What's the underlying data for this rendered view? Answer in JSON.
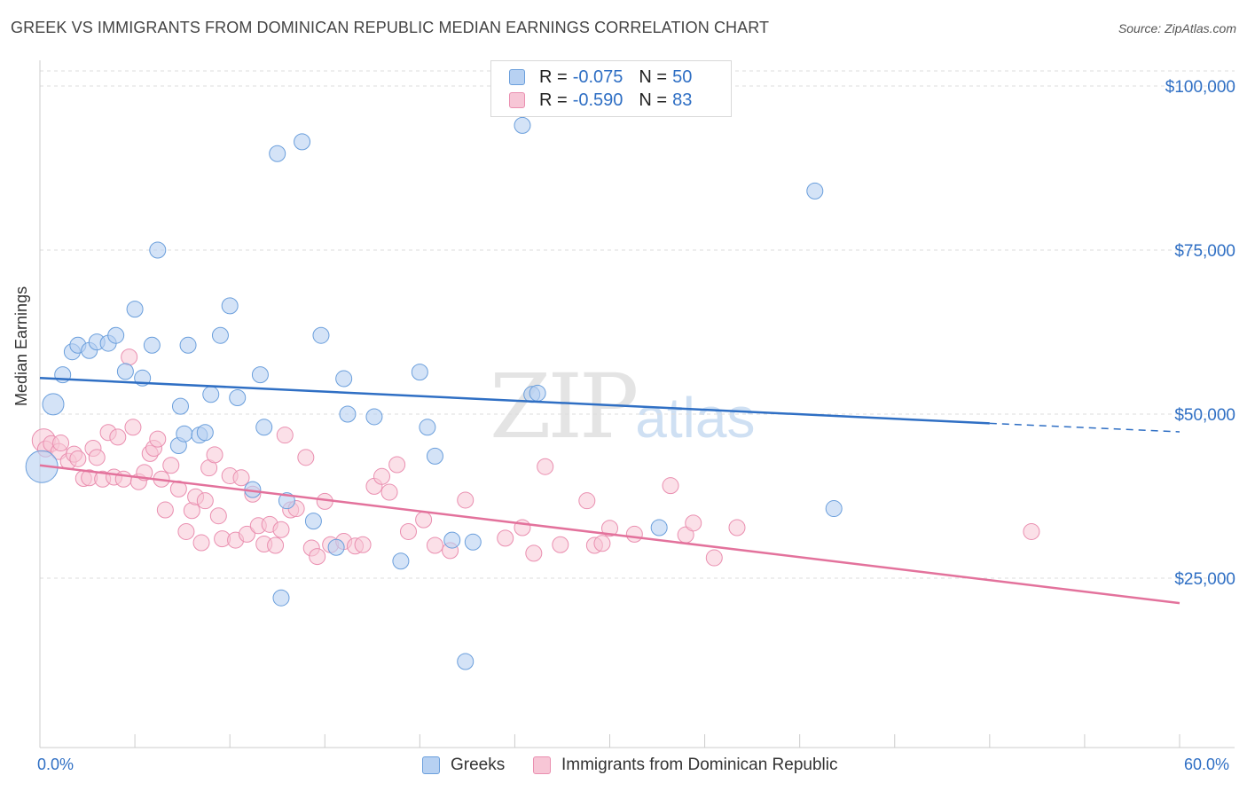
{
  "title": "GREEK VS IMMIGRANTS FROM DOMINICAN REPUBLIC MEDIAN EARNINGS CORRELATION CHART",
  "source": "Source: ZipAtlas.com",
  "watermark": {
    "zip": "ZIP",
    "atlas": "atlas"
  },
  "legend": {
    "rows": [
      {
        "r_label": "R =",
        "r_value": "-0.075",
        "n_label": "N =",
        "n_value": "50"
      },
      {
        "r_label": "R =",
        "r_value": "-0.590",
        "n_label": "N =",
        "n_value": "83"
      }
    ]
  },
  "bottom_legend": [
    "Greeks",
    "Immigrants from Dominican Republic"
  ],
  "colors": {
    "greeks_fill": "#b7d1f2",
    "greeks_stroke": "#6b9fdc",
    "greeks_line": "#2f6fc4",
    "dom_fill": "#f7c6d6",
    "dom_stroke": "#ea8fb0",
    "dom_line": "#e3729c",
    "grid": "#dddddd",
    "axis_text": "#2f6fc4"
  },
  "chart_data": {
    "type": "scatter",
    "title": "GREEK VS IMMIGRANTS FROM DOMINICAN REPUBLIC MEDIAN EARNINGS CORRELATION CHART",
    "xlabel": "",
    "ylabel": "Median Earnings",
    "xlim": [
      0,
      60
    ],
    "ylim": [
      0,
      105000
    ],
    "x_tick_labels": [
      "0.0%",
      "60.0%"
    ],
    "y_ticks": [
      {
        "value": 25000,
        "label": "$25,000"
      },
      {
        "value": 50000,
        "label": "$50,000"
      },
      {
        "value": 75000,
        "label": "$75,000"
      },
      {
        "value": 100000,
        "label": "$100,000"
      }
    ],
    "series": [
      {
        "name": "Greeks",
        "R": -0.075,
        "N": 50,
        "trend": {
          "x_start": 0,
          "y_start": 55500,
          "x_end": 50,
          "y_end": 48600,
          "dashed_to_x": 60,
          "dashed_y_end": 47300
        },
        "points": [
          [
            0.1,
            42000
          ],
          [
            0.7,
            51500
          ],
          [
            1.2,
            56000
          ],
          [
            1.7,
            59500
          ],
          [
            2.0,
            60500
          ],
          [
            2.6,
            59700
          ],
          [
            3.0,
            61000
          ],
          [
            3.6,
            60800
          ],
          [
            4.0,
            62000
          ],
          [
            4.5,
            56500
          ],
          [
            5.0,
            66000
          ],
          [
            5.4,
            55500
          ],
          [
            5.9,
            60500
          ],
          [
            6.2,
            75000
          ],
          [
            7.3,
            45200
          ],
          [
            7.4,
            51200
          ],
          [
            7.6,
            47000
          ],
          [
            7.8,
            60500
          ],
          [
            8.4,
            46800
          ],
          [
            8.7,
            47200
          ],
          [
            9.0,
            53000
          ],
          [
            9.5,
            62000
          ],
          [
            10.0,
            66500
          ],
          [
            10.4,
            52500
          ],
          [
            11.2,
            38500
          ],
          [
            11.6,
            56000
          ],
          [
            11.8,
            48000
          ],
          [
            12.5,
            89700
          ],
          [
            12.7,
            22000
          ],
          [
            13.0,
            36800
          ],
          [
            13.8,
            91500
          ],
          [
            14.4,
            33700
          ],
          [
            14.8,
            62000
          ],
          [
            15.6,
            29700
          ],
          [
            16.0,
            55400
          ],
          [
            16.2,
            50000
          ],
          [
            17.6,
            49600
          ],
          [
            19.0,
            27600
          ],
          [
            20.0,
            56400
          ],
          [
            20.4,
            48000
          ],
          [
            20.8,
            43600
          ],
          [
            21.7,
            30800
          ],
          [
            22.4,
            12300
          ],
          [
            22.8,
            30500
          ],
          [
            25.4,
            94000
          ],
          [
            25.9,
            53000
          ],
          [
            26.2,
            53200
          ],
          [
            32.6,
            32700
          ],
          [
            40.8,
            84000
          ],
          [
            41.8,
            35600
          ]
        ]
      },
      {
        "name": "Immigrants from Dominican Republic",
        "R": -0.59,
        "N": 83,
        "trend": {
          "x_start": 0,
          "y_start": 42200,
          "x_end": 60,
          "y_end": 21200
        },
        "points": [
          [
            0.2,
            46000
          ],
          [
            0.3,
            44700
          ],
          [
            0.6,
            45500
          ],
          [
            1.0,
            44300
          ],
          [
            1.1,
            45600
          ],
          [
            1.5,
            42800
          ],
          [
            1.8,
            43900
          ],
          [
            2.0,
            43200
          ],
          [
            2.3,
            40200
          ],
          [
            2.6,
            40300
          ],
          [
            2.8,
            44800
          ],
          [
            3.0,
            43400
          ],
          [
            3.3,
            40100
          ],
          [
            3.6,
            47200
          ],
          [
            3.9,
            40400
          ],
          [
            4.1,
            46500
          ],
          [
            4.4,
            40100
          ],
          [
            4.7,
            58700
          ],
          [
            4.9,
            48000
          ],
          [
            5.2,
            39700
          ],
          [
            5.5,
            41100
          ],
          [
            5.8,
            44000
          ],
          [
            6.0,
            44800
          ],
          [
            6.2,
            46200
          ],
          [
            6.4,
            40100
          ],
          [
            6.6,
            35400
          ],
          [
            6.9,
            42200
          ],
          [
            7.3,
            38600
          ],
          [
            7.7,
            32100
          ],
          [
            8.0,
            35300
          ],
          [
            8.2,
            37400
          ],
          [
            8.5,
            30400
          ],
          [
            8.7,
            36800
          ],
          [
            8.9,
            41800
          ],
          [
            9.2,
            43800
          ],
          [
            9.4,
            34500
          ],
          [
            9.6,
            31000
          ],
          [
            10.0,
            40600
          ],
          [
            10.3,
            30800
          ],
          [
            10.6,
            40300
          ],
          [
            10.9,
            31700
          ],
          [
            11.2,
            37800
          ],
          [
            11.5,
            33000
          ],
          [
            11.8,
            30200
          ],
          [
            12.1,
            33200
          ],
          [
            12.4,
            30000
          ],
          [
            12.7,
            32400
          ],
          [
            12.9,
            46800
          ],
          [
            13.2,
            35400
          ],
          [
            13.5,
            35600
          ],
          [
            14.0,
            43400
          ],
          [
            14.3,
            29600
          ],
          [
            14.6,
            28300
          ],
          [
            15.0,
            36700
          ],
          [
            15.3,
            30100
          ],
          [
            16.0,
            30600
          ],
          [
            16.6,
            29900
          ],
          [
            17.0,
            30100
          ],
          [
            17.6,
            39000
          ],
          [
            18.0,
            40500
          ],
          [
            18.4,
            38100
          ],
          [
            18.8,
            42300
          ],
          [
            19.4,
            32100
          ],
          [
            20.2,
            33900
          ],
          [
            20.8,
            30000
          ],
          [
            21.6,
            29200
          ],
          [
            22.4,
            36900
          ],
          [
            24.5,
            31100
          ],
          [
            25.4,
            32700
          ],
          [
            26.0,
            28800
          ],
          [
            26.6,
            42000
          ],
          [
            27.4,
            30100
          ],
          [
            28.8,
            36800
          ],
          [
            29.2,
            30000
          ],
          [
            29.6,
            30300
          ],
          [
            30.0,
            32600
          ],
          [
            31.3,
            31700
          ],
          [
            33.2,
            39100
          ],
          [
            34.0,
            31600
          ],
          [
            34.4,
            33400
          ],
          [
            35.5,
            28100
          ],
          [
            36.7,
            32700
          ],
          [
            52.2,
            32100
          ]
        ]
      }
    ]
  }
}
